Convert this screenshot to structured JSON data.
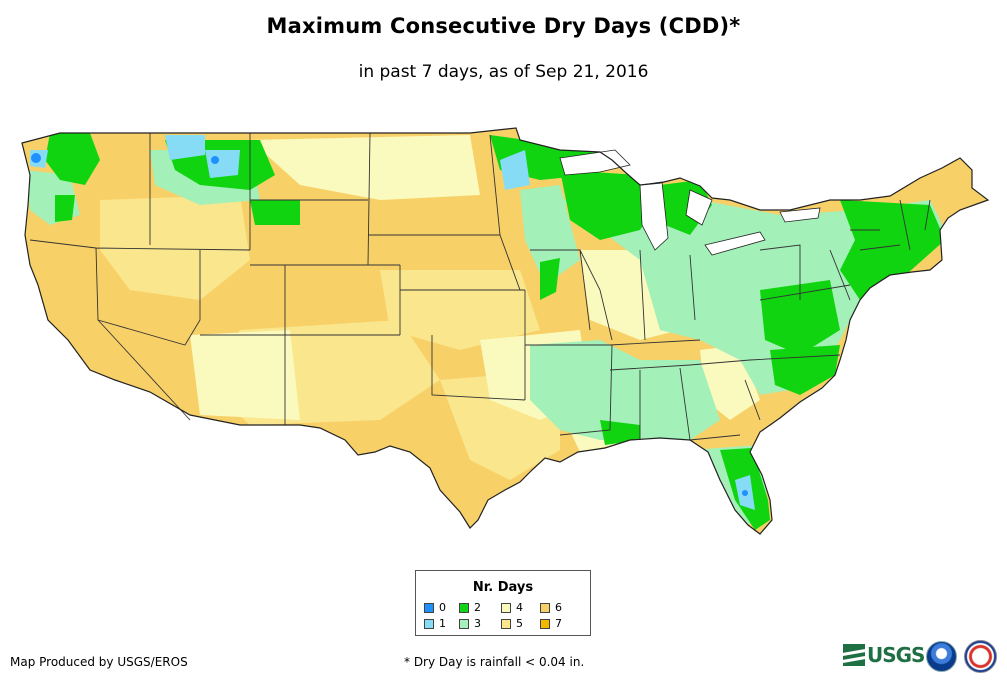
{
  "header": {
    "title": "Maximum Consecutive Dry Days (CDD)*",
    "subtitle": "in past 7 days, as of Sep 21, 2016"
  },
  "legend": {
    "title": "Nr. Days",
    "items": [
      {
        "label": "0",
        "color": "#1e90ff"
      },
      {
        "label": "1",
        "color": "#87dcf5"
      },
      {
        "label": "2",
        "color": "#0fd40f"
      },
      {
        "label": "3",
        "color": "#a3f0b8"
      },
      {
        "label": "4",
        "color": "#fafabe"
      },
      {
        "label": "5",
        "color": "#fae68c"
      },
      {
        "label": "6",
        "color": "#f8d068"
      },
      {
        "label": "7",
        "color": "#f5b800"
      }
    ]
  },
  "footer": {
    "credit": "Map Produced by USGS/EROS",
    "footnote": "* Dry Day is rainfall < 0.04 in.",
    "logo_text": "USGS"
  },
  "map": {
    "region": "Contiguous United States",
    "colors": {
      "outline": "#222222",
      "state_lines": "#333333"
    }
  }
}
